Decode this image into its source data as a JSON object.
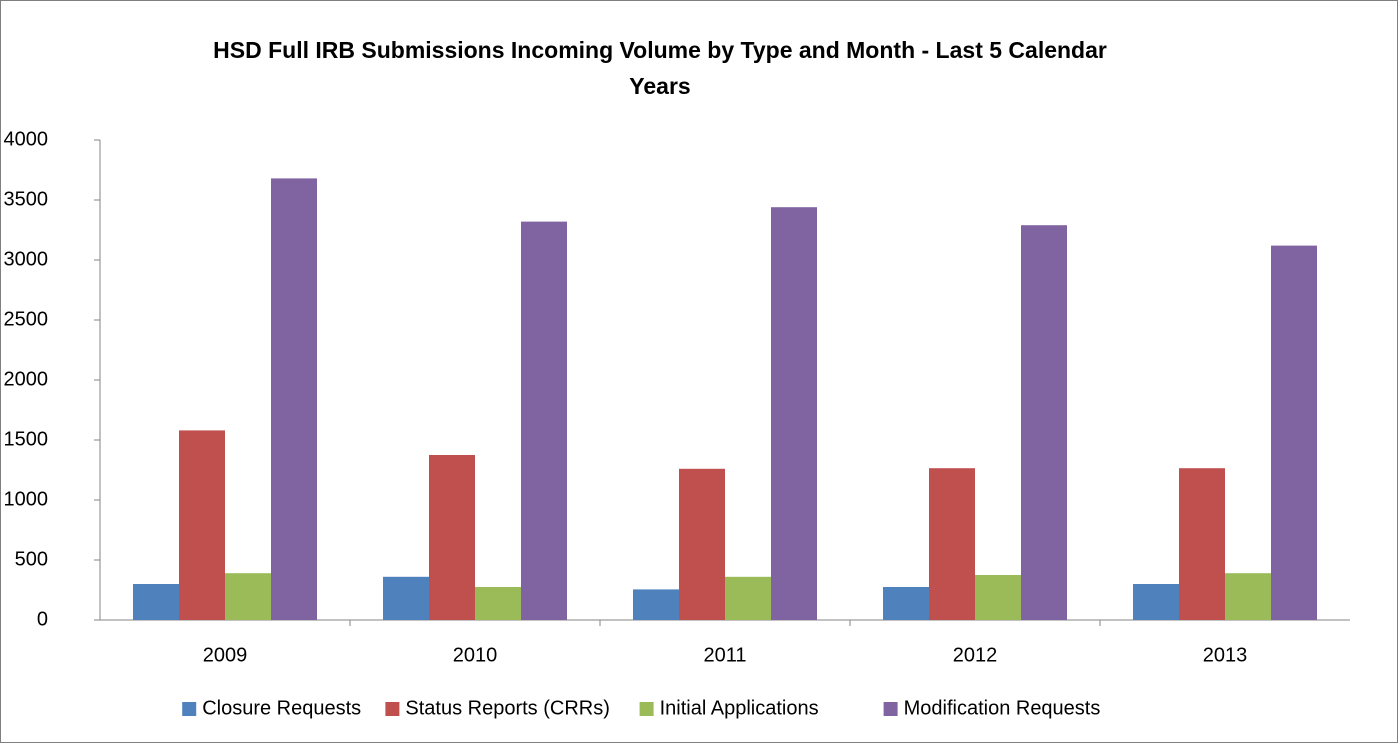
{
  "chart_data": {
    "type": "bar",
    "title": [
      "HSD Full IRB Submissions Incoming Volume by Type and Month - Last 5 Calendar",
      "Years"
    ],
    "categories": [
      "2009",
      "2010",
      "2011",
      "2012",
      "2013"
    ],
    "series": [
      {
        "name": "Closure Requests",
        "color": "#4f81bd",
        "values": [
          300,
          360,
          255,
          275,
          300
        ]
      },
      {
        "name": "Status Reports (CRRs)",
        "color": "#c0504d",
        "values": [
          1580,
          1375,
          1260,
          1265,
          1265
        ]
      },
      {
        "name": "Initial Applications",
        "color": "#9bbb59",
        "values": [
          390,
          275,
          360,
          375,
          390
        ]
      },
      {
        "name": "Modification Requests",
        "color": "#8064a2",
        "values": [
          3680,
          3320,
          3440,
          3290,
          3120
        ]
      }
    ],
    "ylim": [
      0,
      4000
    ],
    "yticks": [
      0,
      500,
      1000,
      1500,
      2000,
      2500,
      3000,
      3500,
      4000
    ],
    "grid": false,
    "legend": "bottom"
  }
}
